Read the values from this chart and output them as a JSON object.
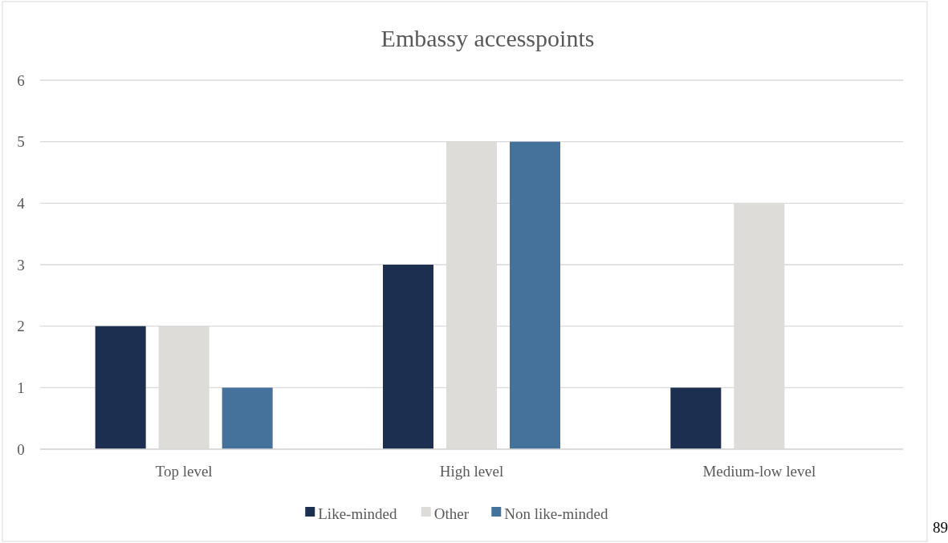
{
  "chart_data": {
    "type": "bar",
    "title": "Embassy accesspoints",
    "categories": [
      "Top level",
      "High level",
      "Medium-low level"
    ],
    "series": [
      {
        "name": "Like-minded",
        "color": "#1c2f50",
        "values": [
          2,
          3,
          1
        ]
      },
      {
        "name": "Other",
        "color": "#dddcd9",
        "values": [
          2,
          5,
          4
        ]
      },
      {
        "name": "Non like-minded",
        "color": "#45729b",
        "values": [
          1,
          5,
          0
        ]
      }
    ],
    "ylim": [
      0,
      6
    ],
    "yticks": [
      0,
      1,
      2,
      3,
      4,
      5,
      6
    ],
    "grid": "y",
    "legend": "bottom",
    "annotations": [
      "89"
    ]
  }
}
